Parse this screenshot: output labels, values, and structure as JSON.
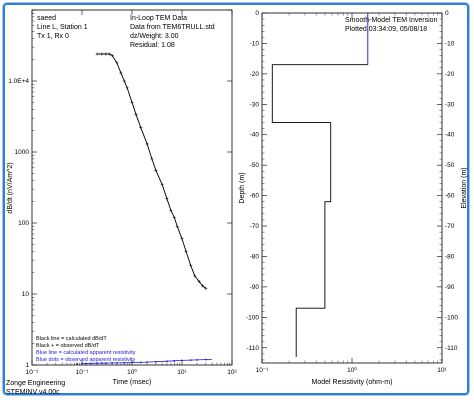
{
  "colors": {
    "frame": "#2f7fd6",
    "blue": "#1a1ad6",
    "black": "#000000"
  },
  "footer": {
    "company": "Zonge Engineering",
    "version": "STEMINV v4.00c"
  },
  "chart_data": [
    {
      "type": "line",
      "x_scale": "log",
      "y_scale": "log",
      "xlim": [
        0.01,
        100
      ],
      "ylim": [
        1,
        100000
      ],
      "xlabel": "Time (msec)",
      "ylabel": "dB/dt (nV/Am^2)",
      "x_ticks": [
        "10⁻²",
        "10⁻¹",
        "10⁰",
        "10¹",
        "10²"
      ],
      "y_ticks": [
        {
          "value": 10000,
          "label": "1.0E+4"
        },
        {
          "value": 1000,
          "label": "1000"
        },
        {
          "value": 100,
          "label": "100"
        },
        {
          "value": 10,
          "label": "10"
        },
        {
          "value": 1,
          "label": "1"
        }
      ],
      "header_left": [
        "saeed",
        "Line L, Station 1",
        "Tx 1,  Rx 0"
      ],
      "header_right": [
        "In-Loop TEM Data",
        "Data from TEM6TRULL.std",
        "dz/Weight:    3.00",
        "Residual:     1.08"
      ],
      "legend": [
        {
          "text": "Black line = calculated dB/dT",
          "color": "#000000"
        },
        {
          "text": "Black + = observed dB/dT",
          "color": "#000000"
        },
        {
          "text": "Blue line = calculated apparent resistivity",
          "color": "#1a1ad6"
        },
        {
          "text": "Blue dots = observed apparent resistivity",
          "color": "#1a1ad6"
        }
      ],
      "series": [
        {
          "name": "calculated dB/dT",
          "x": [
            0.2,
            0.25,
            0.3,
            0.35,
            0.4,
            0.5,
            0.6,
            0.7,
            0.8,
            1.0,
            1.2,
            1.5,
            2.0,
            2.5,
            3.0,
            4.0,
            5.0,
            6.0,
            7.0,
            8.0,
            10.0,
            12.0,
            15.0,
            18.0,
            22.0,
            26.0,
            30.0
          ],
          "y": [
            24000,
            24000,
            24000,
            24000,
            23000,
            18000,
            13000,
            10000,
            8000,
            5000,
            3400,
            2200,
            1300,
            800,
            550,
            350,
            220,
            150,
            120,
            90,
            60,
            40,
            25,
            18,
            15,
            13,
            12
          ]
        },
        {
          "name": "observed dB/dT",
          "x": [
            0.2,
            0.25,
            0.3,
            0.35,
            0.4,
            0.5,
            0.6,
            0.7,
            0.8,
            1.0,
            1.2,
            1.5,
            2.0,
            2.5,
            3.0,
            4.0,
            5.0,
            6.0,
            7.0,
            8.0,
            10.0,
            12.0,
            15.0,
            18.0,
            22.0,
            26.0,
            30.0
          ],
          "y": [
            24000,
            24000,
            24000,
            24000,
            23000,
            18000,
            13000,
            10000,
            8000,
            5000,
            3400,
            2200,
            1300,
            800,
            550,
            350,
            220,
            150,
            120,
            90,
            60,
            40,
            25,
            18,
            15,
            13,
            12
          ]
        },
        {
          "name": "calculated apparent resistivity",
          "x": [
            0.1,
            0.2,
            0.5,
            1.0,
            2.0,
            5.0,
            10.0,
            20.0,
            40.0
          ],
          "y": [
            1.05,
            1.06,
            1.07,
            1.08,
            1.1,
            1.13,
            1.16,
            1.18,
            1.2
          ]
        },
        {
          "name": "observed apparent resistivity",
          "x": [
            0.08,
            0.1,
            0.12,
            0.15,
            0.2,
            0.25,
            0.3,
            0.4,
            0.5,
            0.7,
            1.0,
            1.5,
            2.0,
            3.0,
            5.0,
            7.0,
            10.0,
            15.0,
            20.0,
            30.0
          ],
          "y": [
            1.04,
            1.05,
            1.05,
            1.05,
            1.06,
            1.06,
            1.06,
            1.07,
            1.07,
            1.07,
            1.08,
            1.09,
            1.1,
            1.11,
            1.13,
            1.14,
            1.16,
            1.17,
            1.18,
            1.19
          ]
        }
      ]
    },
    {
      "type": "line",
      "x_scale": "log",
      "xlim": [
        0.1,
        10
      ],
      "ylim": [
        -115,
        0
      ],
      "xlabel": "Model Resistivity (ohm-m)",
      "ylabel": "Depth (m)",
      "y2label": "Elevation (m)",
      "x_ticks": [
        "10⁻¹",
        "10⁰",
        "10¹"
      ],
      "y_ticks": [
        "0",
        "-10",
        "-20",
        "-30",
        "-40",
        "-50",
        "-60",
        "-70",
        "-80",
        "-90",
        "-100",
        "-110"
      ],
      "header": [
        "Smooth-Model TEM Inversion",
        "Plotted 03:34:09, 05/08/18"
      ],
      "series": [
        {
          "name": "model resistivity",
          "resistivity": [
            1.5,
            1.5,
            0.13,
            0.13,
            0.58,
            0.58,
            0.5,
            0.5,
            0.24,
            0.24
          ],
          "depth": [
            0,
            -17,
            -17,
            -36,
            -36,
            -62,
            -62,
            -97,
            -97,
            -113
          ]
        }
      ]
    }
  ]
}
